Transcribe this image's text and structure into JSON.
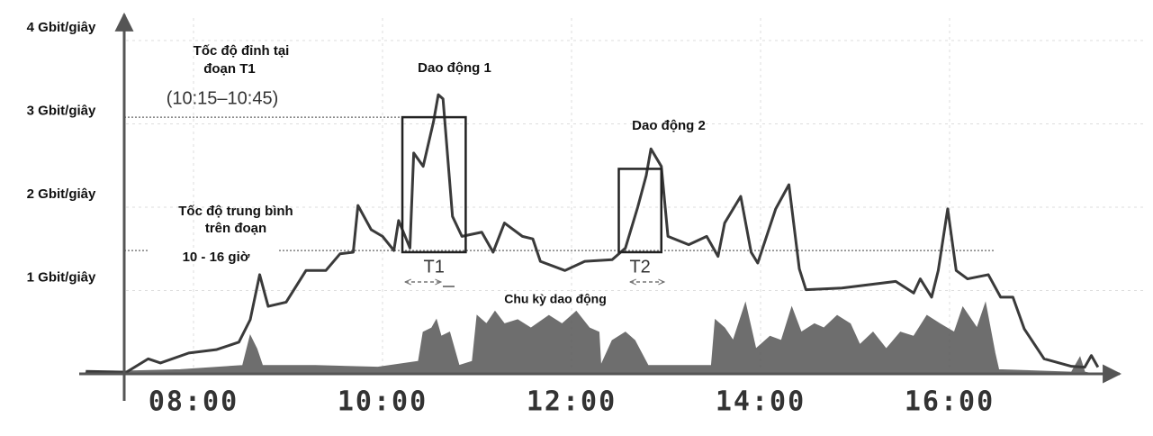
{
  "chart_data": {
    "type": "line",
    "xlim": [
      6.8,
      17.8
    ],
    "xticks": [
      {
        "value": 8,
        "label": "08:00"
      },
      {
        "value": 10,
        "label": "10:00"
      },
      {
        "value": 12,
        "label": "12:00"
      },
      {
        "value": 14,
        "label": "14:00"
      },
      {
        "value": 16,
        "label": "16:00"
      }
    ],
    "ylim": [
      0,
      4.2
    ],
    "yticks": [
      {
        "value": 1,
        "label": "1 Gbit/giây"
      },
      {
        "value": 2,
        "label": "2 Gbit/giây"
      },
      {
        "value": 3,
        "label": "3 Gbit/giây"
      },
      {
        "value": 4,
        "label": "4 Gbit/giây"
      }
    ],
    "grid": true,
    "series": [
      {
        "kind": "line",
        "color": "#3a3a3a",
        "x": [
          6.86,
          7.29,
          7.52,
          7.65,
          7.95,
          8.24,
          8.48,
          8.6,
          8.7,
          8.79,
          8.98,
          9.19,
          9.4,
          9.55,
          9.69,
          9.74,
          9.88,
          10.0,
          10.12,
          10.17,
          10.29,
          10.33,
          10.43,
          10.54,
          10.59,
          10.64,
          10.74,
          10.84,
          11.05,
          11.17,
          11.29,
          11.48,
          11.59,
          11.67,
          11.93,
          12.14,
          12.43,
          12.57,
          12.7,
          12.79,
          12.84,
          12.95,
          13.02,
          13.24,
          13.43,
          13.55,
          13.62,
          13.79,
          13.9,
          13.97,
          14.16,
          14.3,
          14.35,
          14.41,
          14.48,
          14.86,
          15.43,
          15.62,
          15.69,
          15.81,
          15.88,
          15.98,
          16.07,
          16.19,
          16.41,
          16.54,
          16.67,
          16.79,
          17.0,
          17.29,
          17.43,
          17.5,
          17.57
        ],
        "values": [
          0.03,
          0.02,
          0.18,
          0.13,
          0.25,
          0.29,
          0.38,
          0.65,
          1.19,
          0.81,
          0.86,
          1.24,
          1.24,
          1.44,
          1.46,
          2.02,
          1.73,
          1.65,
          1.48,
          1.84,
          1.51,
          2.65,
          2.49,
          3.03,
          3.35,
          3.3,
          1.89,
          1.65,
          1.7,
          1.46,
          1.81,
          1.65,
          1.62,
          1.35,
          1.24,
          1.35,
          1.37,
          1.51,
          2.0,
          2.38,
          2.7,
          2.49,
          1.65,
          1.55,
          1.65,
          1.41,
          1.81,
          2.13,
          1.46,
          1.33,
          1.98,
          2.27,
          1.81,
          1.26,
          1.01,
          1.03,
          1.11,
          0.97,
          1.14,
          0.92,
          1.24,
          1.98,
          1.24,
          1.14,
          1.19,
          0.92,
          0.92,
          0.54,
          0.18,
          0.09,
          0.08,
          0.22,
          0.08
        ]
      },
      {
        "kind": "area",
        "color": "#555555",
        "x": [
          6.86,
          7.86,
          8.52,
          8.6,
          8.67,
          8.73,
          9.29,
          9.95,
          10.38,
          10.43,
          10.52,
          10.57,
          10.62,
          10.71,
          10.81,
          10.95,
          11.0,
          11.1,
          11.19,
          11.29,
          11.43,
          11.57,
          11.76,
          11.9,
          12.05,
          12.19,
          12.29,
          12.31,
          12.43,
          12.57,
          12.67,
          12.81,
          13.48,
          13.52,
          13.62,
          13.71,
          13.84,
          13.95,
          14.1,
          14.22,
          14.33,
          14.43,
          14.57,
          14.67,
          14.81,
          14.95,
          15.05,
          15.19,
          15.33,
          15.48,
          15.62,
          15.76,
          15.9,
          16.05,
          16.14,
          16.29,
          16.38,
          16.48,
          16.52,
          17.29,
          17.38,
          17.43,
          17.52
        ],
        "values": [
          0.02,
          0.05,
          0.1,
          0.46,
          0.3,
          0.1,
          0.1,
          0.08,
          0.15,
          0.5,
          0.55,
          0.65,
          0.45,
          0.5,
          0.1,
          0.15,
          0.7,
          0.6,
          0.75,
          0.6,
          0.65,
          0.55,
          0.7,
          0.6,
          0.75,
          0.55,
          0.5,
          0.1,
          0.4,
          0.5,
          0.4,
          0.1,
          0.1,
          0.65,
          0.55,
          0.4,
          0.85,
          0.3,
          0.45,
          0.4,
          0.8,
          0.5,
          0.6,
          0.55,
          0.7,
          0.6,
          0.35,
          0.5,
          0.3,
          0.5,
          0.45,
          0.7,
          0.6,
          0.5,
          0.8,
          0.55,
          0.85,
          0.25,
          0.05,
          0.02,
          0.2,
          0.02,
          0
        ]
      }
    ],
    "reference_lines": [
      3.08,
      1.48
    ],
    "boxes": [
      {
        "label": "T1",
        "x": [
          10.21,
          10.88
        ],
        "y": [
          1.46,
          3.08
        ]
      },
      {
        "label": "T2",
        "x": [
          12.5,
          12.95
        ],
        "y": [
          1.46,
          2.46
        ]
      }
    ],
    "annotations": {
      "peak_label": [
        "Tốc độ đỉnh tại",
        "đoạn T1"
      ],
      "peak_period": "(10:15–10:45)",
      "oscillation_1": "Dao động 1",
      "oscillation_2": "Dao động 2",
      "average_label": [
        "Tốc độ trung bình",
        "trên đoạn"
      ],
      "average_period": "10 - 16 giờ",
      "cycle_label": "Chu kỳ dao động"
    }
  }
}
